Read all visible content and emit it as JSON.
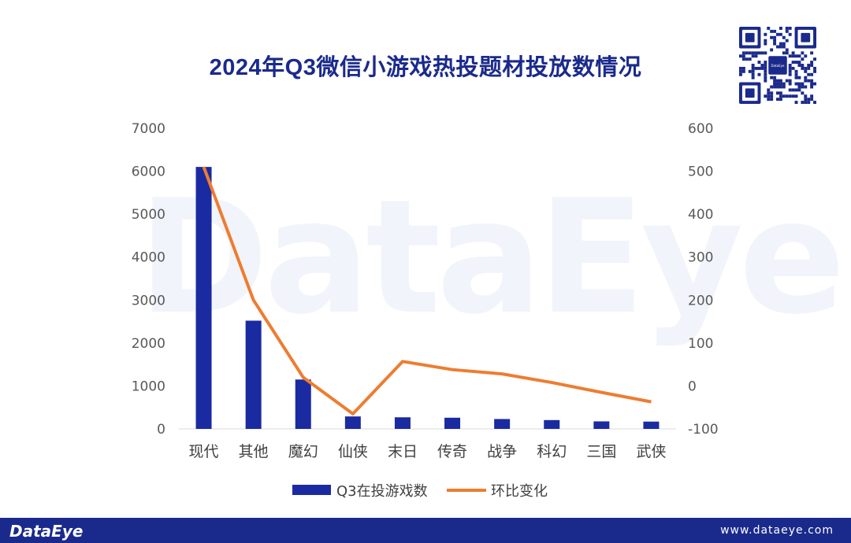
{
  "chart_data": {
    "type": "bar",
    "title": "2024年Q3微信小游戏热投题材投放数情况",
    "categories": [
      "现代",
      "其他",
      "魔幻",
      "仙侠",
      "末日",
      "传奇",
      "战争",
      "科幻",
      "三国",
      "武侠"
    ],
    "series": [
      {
        "name": "Q3在投游戏数",
        "type": "bar",
        "axis": "left",
        "color": "#1a2aa0",
        "values": [
          6100,
          2520,
          1150,
          290,
          270,
          260,
          230,
          205,
          175,
          170
        ]
      },
      {
        "name": "环比变化",
        "type": "line",
        "axis": "right",
        "color": "#ed7d31",
        "values": [
          510,
          200,
          20,
          -65,
          57,
          38,
          28,
          8,
          -15,
          -37
        ]
      }
    ],
    "y_left": {
      "min": 0,
      "max": 7000,
      "ticks": [
        0,
        1000,
        2000,
        3000,
        4000,
        5000,
        6000,
        7000
      ]
    },
    "y_right": {
      "min": -100,
      "max": 600,
      "ticks": [
        -100,
        0,
        100,
        200,
        300,
        400,
        500,
        600
      ]
    },
    "grid": false,
    "legend_position": "bottom"
  },
  "watermark": "DataEye",
  "footer": {
    "logo": "DataEye",
    "url": "www.dataeye.com"
  },
  "qr": {
    "center_label": "DataEye"
  }
}
